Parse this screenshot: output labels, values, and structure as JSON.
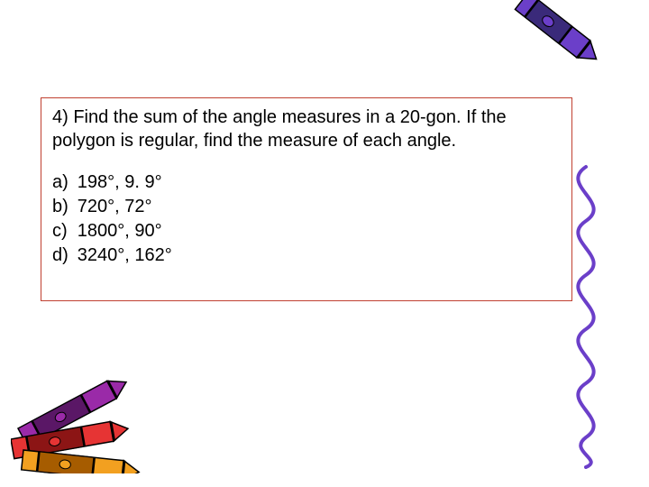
{
  "question": {
    "prompt": "4)  Find the sum of the angle measures in a 20-gon. If the polygon is regular, find the measure of each angle.",
    "choices": [
      {
        "letter": "a)",
        "text": "198°, 9. 9°"
      },
      {
        "letter": "b)",
        "text": "720°, 72°"
      },
      {
        "letter": "c)",
        "text": "1800°, 90°"
      },
      {
        "letter": "d)",
        "text": "3240°, 162°"
      }
    ]
  },
  "decor": {
    "crayon_top": {
      "body_color": "#6b3fc9",
      "wrap_color": "#3a2a7a",
      "tip_color": "#6b3fc9",
      "outline": "#000000"
    },
    "squiggle": {
      "stroke": "#6b3fc9",
      "stroke_width": 4
    },
    "crayons_bottom": [
      {
        "body": "#9a2aa8",
        "wrap": "#5a1766",
        "angle": -28
      },
      {
        "body": "#e63434",
        "wrap": "#8c1515",
        "angle": -10
      },
      {
        "body": "#f2a020",
        "wrap": "#a65c00",
        "angle": 6
      }
    ],
    "box_border": "#c04030"
  }
}
